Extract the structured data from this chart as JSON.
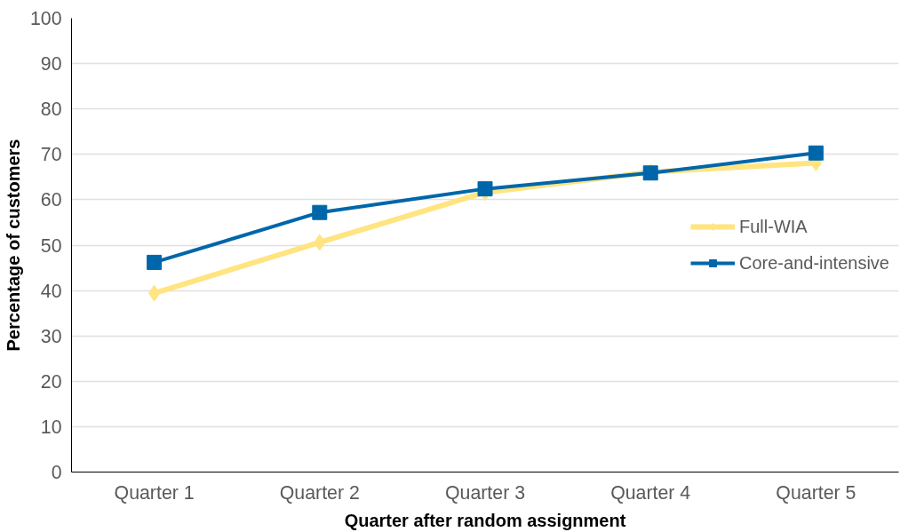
{
  "chart_data": {
    "type": "line",
    "xlabel": "Quarter after random assignment",
    "ylabel": "Percentage of customers",
    "categories": [
      "Quarter 1",
      "Quarter 2",
      "Quarter 3",
      "Quarter 4",
      "Quarter 5"
    ],
    "series": [
      {
        "name": "Full-WIA",
        "color": "#ffe480",
        "marker": "diamond",
        "values": [
          39.4,
          50.6,
          61.6,
          66.1,
          68.1
        ]
      },
      {
        "name": "Core-and-intensive",
        "color": "#0066aa",
        "marker": "square",
        "values": [
          46.2,
          57.2,
          62.4,
          65.9,
          70.3
        ]
      }
    ],
    "ylim": [
      0,
      100
    ],
    "yticks": [
      0,
      10,
      20,
      30,
      40,
      50,
      60,
      70,
      80,
      90,
      100
    ],
    "grid": "y",
    "legend": "right"
  }
}
